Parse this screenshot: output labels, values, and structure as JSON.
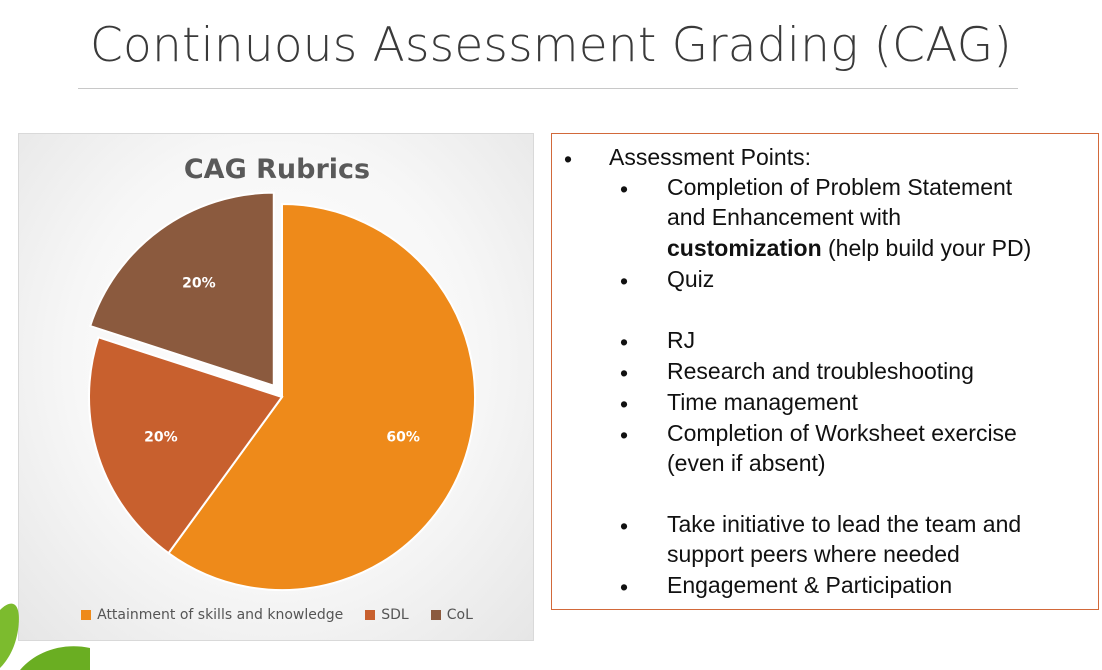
{
  "slide": {
    "title": "Continuous Assessment Grading (CAG)"
  },
  "chart_data": {
    "type": "pie",
    "title": "CAG Rubrics",
    "categories": [
      "Attainment of skills and knowledge",
      "SDL",
      "CoL"
    ],
    "values": [
      60,
      20,
      20
    ],
    "labels": [
      "60%",
      "20%",
      "20%"
    ],
    "colors": [
      "#ee8a1a",
      "#c8602e",
      "#8b5a3e"
    ],
    "exploded_slice": "CoL",
    "legend_position": "bottom"
  },
  "assessment": {
    "heading": "Assessment Points:",
    "item1_line1": "Completion of Problem Statement",
    "item1_line2": "and Enhancement with",
    "item1_bold": "customization",
    "item1_rest": " (help build your PD)",
    "item2": "Quiz",
    "item3": "RJ",
    "item4": "Research and troubleshooting",
    "item5": "Time management",
    "item6_line1": "Completion of Worksheet exercise",
    "item6_line2": "(even if absent)",
    "item7_line1": "Take initiative to lead the team and",
    "item7_line2": "support peers where needed",
    "item8": "Engagement & Participation",
    "bullet": "•"
  }
}
